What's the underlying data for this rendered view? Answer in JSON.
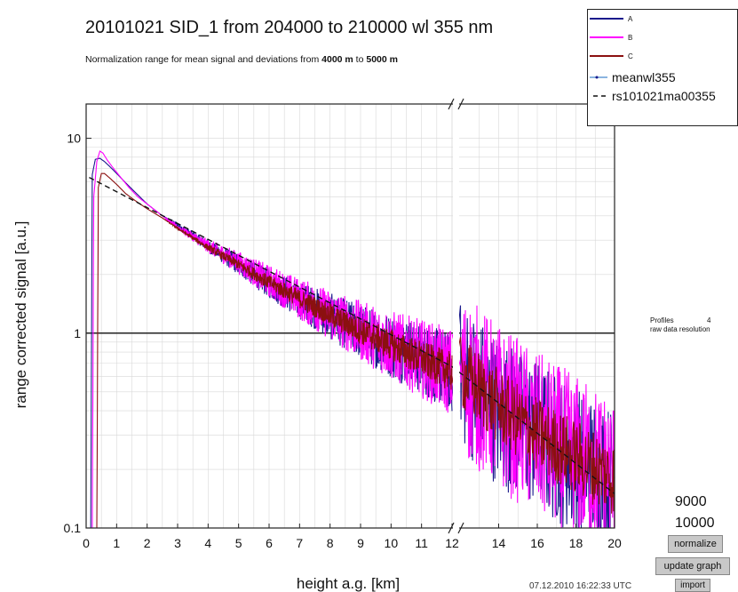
{
  "header": {
    "title": "20101021 SID_1 from 204000 to 210000 wl 355 nm",
    "subtitle_prefix": "Normalization range for mean signal and deviations from ",
    "subtitle_from": "4000 m",
    "subtitle_mid": " to ",
    "subtitle_to": "5000 m"
  },
  "chart_data": {
    "type": "line",
    "title": "20101021 SID_1 from 204000 to 210000 wl 355 nm",
    "xlabel": "height a.g. [km]",
    "ylabel": "range corrected signal [a.u.]",
    "y_scale": "log",
    "ylim": [
      0.1,
      15
    ],
    "x_segments": [
      {
        "range": [
          0,
          12
        ],
        "ticks": [
          0,
          1,
          2,
          3,
          4,
          5,
          6,
          7,
          8,
          9,
          10,
          11,
          12
        ]
      },
      {
        "range": [
          12,
          20
        ],
        "ticks": [
          14,
          16,
          18,
          20
        ]
      }
    ],
    "y_tick_labels": [
      "10",
      "1",
      "0.1"
    ],
    "y_ticks": [
      10,
      1,
      0.1
    ],
    "reference_line_y": 1,
    "grid": true,
    "legend_position": "top-right",
    "series": [
      {
        "name": "A",
        "color": "#1a1a8c",
        "x": [
          0.15,
          0.2,
          0.3,
          0.45,
          0.6,
          0.8,
          1,
          1.3,
          1.6,
          2,
          2.5,
          3,
          4,
          5,
          6,
          7,
          8,
          9,
          10,
          11,
          12,
          14,
          16,
          18,
          20
        ],
        "y": [
          0.1,
          6.5,
          7.8,
          7.9,
          7.6,
          7.1,
          6.6,
          5.9,
          5.3,
          4.6,
          4.0,
          3.6,
          2.8,
          2.25,
          1.8,
          1.48,
          1.22,
          1.02,
          0.86,
          0.74,
          0.62,
          0.4,
          0.3,
          0.22,
          0.17
        ],
        "noise": 0.5
      },
      {
        "name": "B",
        "color": "#ff00ff",
        "x": [
          0.2,
          0.25,
          0.35,
          0.45,
          0.55,
          0.7,
          0.9,
          1.1,
          1.4,
          1.7,
          2,
          2.5,
          3,
          4,
          5,
          6,
          7,
          8,
          9,
          10,
          11,
          12,
          14,
          16,
          18,
          20
        ],
        "y": [
          0.1,
          5.0,
          7.6,
          8.6,
          8.4,
          7.7,
          7.0,
          6.4,
          5.6,
          5.0,
          4.6,
          4.0,
          3.5,
          2.8,
          2.3,
          1.85,
          1.5,
          1.24,
          1.03,
          0.87,
          0.74,
          0.63,
          0.42,
          0.3,
          0.23,
          0.18
        ],
        "noise": 0.55
      },
      {
        "name": "C",
        "color": "#8b1010",
        "x": [
          0.35,
          0.4,
          0.5,
          0.6,
          0.8,
          1,
          1.3,
          1.6,
          2,
          2.5,
          3,
          4,
          5,
          6,
          7,
          8,
          9,
          10,
          11,
          12,
          14,
          16,
          18,
          20
        ],
        "y": [
          0.1,
          5.6,
          6.6,
          6.6,
          6.2,
          5.8,
          5.2,
          4.8,
          4.35,
          3.9,
          3.45,
          2.75,
          2.25,
          1.82,
          1.5,
          1.24,
          1.03,
          0.87,
          0.74,
          0.63,
          0.42,
          0.3,
          0.23,
          0.18
        ],
        "noise": 0.25
      },
      {
        "name": "meanwl355",
        "color": "#8ab4e0",
        "x": [],
        "y": []
      },
      {
        "name": "rs101021ma00355",
        "color": "#111111",
        "dash": true,
        "x": [
          0.1,
          20
        ],
        "y": [
          6.3,
          0.15
        ]
      }
    ]
  },
  "legend": {
    "items": [
      {
        "label": "A",
        "color": "#1a1a8c",
        "style": "line"
      },
      {
        "label": "B",
        "color": "#ff00ff",
        "style": "line"
      },
      {
        "label": "C",
        "color": "#8b1010",
        "style": "line"
      },
      {
        "label": "meanwl355",
        "color": "#8ab4e0",
        "style": "dot-line"
      },
      {
        "label": "rs101021ma00355",
        "color": "#111111",
        "style": "dash"
      }
    ]
  },
  "info": {
    "profiles_label": "Profiles",
    "profiles_count": "4",
    "resolution_label": "raw data resolution"
  },
  "range_inputs": {
    "low": "9000",
    "high": "10000"
  },
  "buttons": {
    "normalize": "normalize",
    "update_graph": "update graph",
    "import": "import"
  },
  "timestamp": "07.12.2010 16:22:33 UTC"
}
